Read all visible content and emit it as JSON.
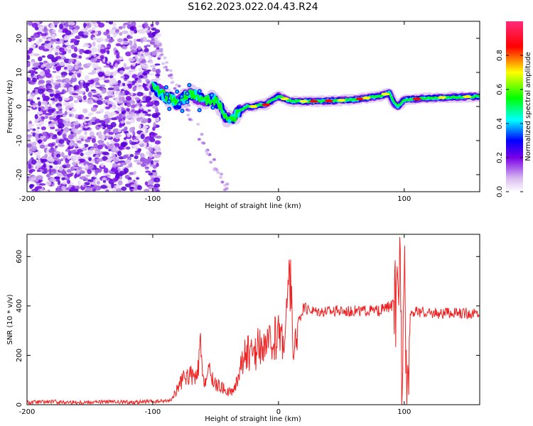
{
  "figure_title": "S162.2023.022.04.43.R24",
  "colors": {
    "axis": "#000000",
    "snr_line": "#ee2222",
    "colormap": [
      "#ffffff",
      "#d7b8f0",
      "#7a00e6",
      "#0000ff",
      "#00ffff",
      "#00ff00",
      "#ffff00",
      "#ff0000",
      "#ff2a7a"
    ]
  },
  "chart_data": [
    {
      "type": "heatmap",
      "xlabel": "Height of straight line (km)",
      "ylabel": "Frequency (Hz)",
      "xlim": [
        -200,
        160
      ],
      "ylim": [
        -25,
        25
      ],
      "xticks": [
        -200,
        -100,
        0,
        100
      ],
      "yticks": [
        -20,
        -10,
        0,
        10,
        20
      ],
      "colorbar": {
        "label": "Normalized spectral amplitude",
        "range": [
          0,
          1
        ],
        "ticks": [
          "0.0",
          "0.2",
          "0.4",
          "0.6",
          "0.8"
        ]
      },
      "ridge": {
        "description_points_x": [
          -100,
          -90,
          -80,
          -70,
          -60,
          -50,
          -45,
          -40,
          -35,
          -30,
          -25,
          -20,
          -15,
          -10,
          -5,
          0,
          10,
          30,
          60,
          80,
          88,
          92,
          95,
          100,
          120,
          160
        ],
        "freq_hz": [
          6,
          3,
          1,
          4,
          2,
          2,
          -1,
          -4,
          -3,
          -1,
          0,
          0,
          0.5,
          0.5,
          2,
          3,
          1.5,
          1.5,
          2,
          3,
          4,
          1,
          0,
          2,
          2.5,
          3
        ]
      },
      "grid": false
    },
    {
      "type": "line",
      "xlabel": "Height of straight line (km)",
      "ylabel": "SNR (10 * v/v)",
      "xlim": [
        -200,
        160
      ],
      "ylim": [
        0,
        690
      ],
      "xticks": [
        -200,
        -100,
        0,
        100
      ],
      "yticks": [
        0,
        200,
        400,
        600
      ],
      "series": [
        {
          "x": [
            -200,
            -180,
            -160,
            -140,
            -120,
            -100,
            -90,
            -85,
            -80,
            -75,
            -70,
            -65,
            -62,
            -60,
            -55,
            -50,
            -45,
            -40,
            -35,
            -30,
            -25,
            -20,
            -15,
            -10,
            -5,
            0,
            5,
            8,
            10,
            12,
            15,
            20,
            30,
            40,
            60,
            80,
            90,
            95,
            97,
            98,
            100,
            102,
            105,
            120,
            140,
            160
          ],
          "y": [
            10,
            12,
            10,
            12,
            10,
            12,
            15,
            20,
            70,
            110,
            120,
            100,
            230,
            90,
            130,
            80,
            70,
            50,
            60,
            160,
            220,
            190,
            250,
            230,
            250,
            290,
            270,
            450,
            540,
            150,
            330,
            390,
            380,
            380,
            380,
            380,
            400,
            420,
            650,
            20,
            690,
            10,
            380,
            370,
            370,
            370
          ]
        }
      ],
      "grid": false
    }
  ]
}
